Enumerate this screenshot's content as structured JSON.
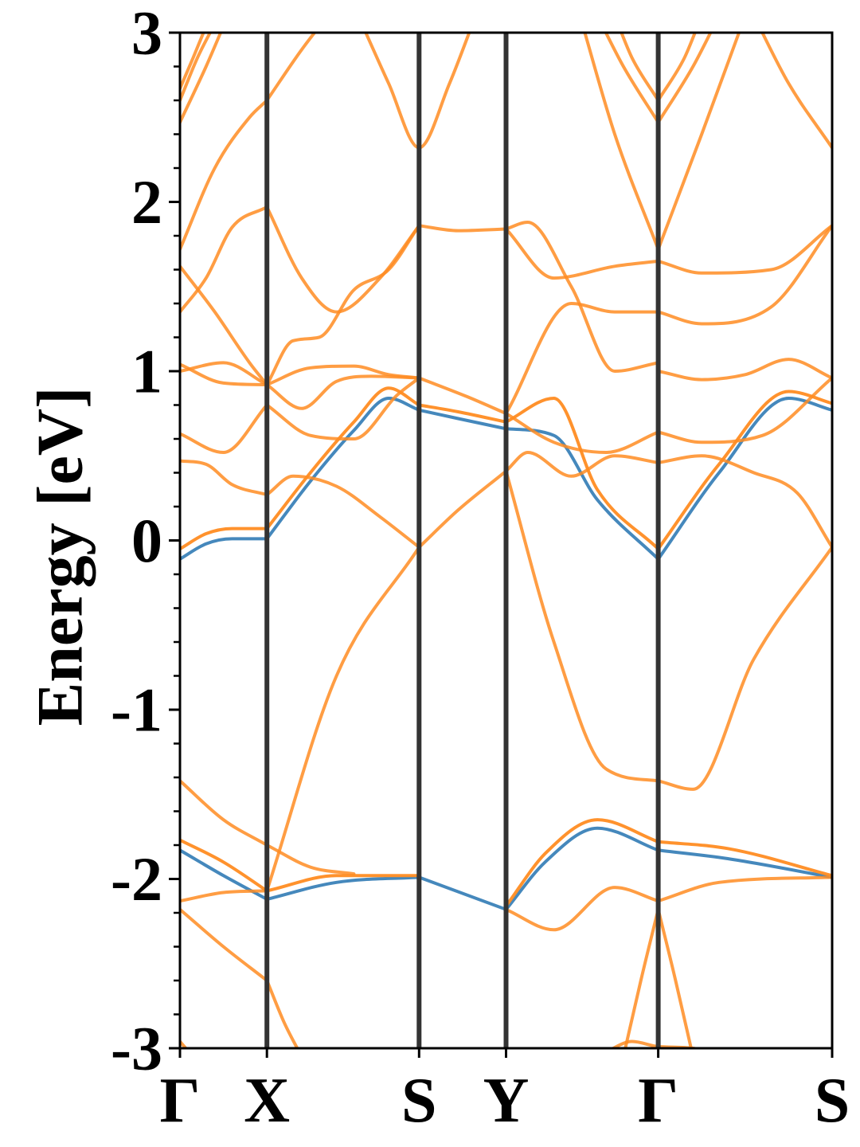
{
  "chart_data": {
    "type": "line",
    "ylabel": "Energy [eV]",
    "xlabel": "",
    "ylim": [
      -3,
      3
    ],
    "yticks": [
      {
        "value": 3,
        "label": "3"
      },
      {
        "value": 2,
        "label": "2"
      },
      {
        "value": 1,
        "label": "1"
      },
      {
        "value": 0,
        "label": "0"
      },
      {
        "value": -1,
        "label": "-1"
      },
      {
        "value": -2,
        "label": "-2"
      },
      {
        "value": -3,
        "label": "-3"
      }
    ],
    "yminor_step": 0.2,
    "kpoints": [
      {
        "label": "Γ",
        "k": 0.0
      },
      {
        "label": "X",
        "k": 1.0
      },
      {
        "label": "S",
        "k": 2.75
      },
      {
        "label": "Y",
        "k": 3.75
      },
      {
        "label": "Γ",
        "k": 5.5
      },
      {
        "label": "S",
        "k": 7.5
      }
    ],
    "grid": false,
    "legend": "none",
    "colors": {
      "blue": "#3b82b8",
      "orange": "#ff8c22",
      "kline": "#333333"
    },
    "series": [
      {
        "color": "blue",
        "bands": [
          {
            "k": [
              0,
              0.3,
              0.6,
              1.0
            ],
            "e": [
              -0.11,
              -0.02,
              0.01,
              0.01
            ]
          },
          {
            "k": [
              1.0,
              1.5,
              2.0,
              2.4,
              2.75
            ],
            "e": [
              0.01,
              0.35,
              0.65,
              0.84,
              0.77
            ]
          },
          {
            "k": [
              2.75,
              3.2,
              3.75
            ],
            "e": [
              0.77,
              0.72,
              0.66
            ]
          },
          {
            "k": [
              3.75,
              4.3,
              4.8,
              5.5
            ],
            "e": [
              0.66,
              0.62,
              0.24,
              -0.11
            ]
          },
          {
            "k": [
              5.5,
              6.2,
              7.0,
              7.5
            ],
            "e": [
              -0.11,
              0.4,
              0.84,
              0.77
            ]
          },
          {
            "k": [
              0,
              0.5,
              1.0
            ],
            "e": [
              -1.83,
              -1.98,
              -2.12
            ]
          },
          {
            "k": [
              1.0,
              1.8,
              2.75
            ],
            "e": [
              -2.12,
              -2.02,
              -1.99
            ]
          },
          {
            "k": [
              3.75,
              4.2,
              4.8,
              5.5
            ],
            "e": [
              -2.18,
              -1.9,
              -1.7,
              -1.83
            ]
          },
          {
            "k": [
              5.5,
              6.3,
              7.5
            ],
            "e": [
              -1.83,
              -1.88,
              -1.99
            ]
          },
          {
            "k": [
              2.75,
              3.75
            ],
            "e": [
              -1.99,
              -2.18
            ]
          }
        ]
      },
      {
        "color": "orange",
        "bands": [
          {
            "k": [
              0,
              0.3,
              0.6,
              1.0
            ],
            "e": [
              -0.05,
              0.04,
              0.07,
              0.07
            ]
          },
          {
            "k": [
              1.0,
              1.5,
              2.0,
              2.4,
              2.75
            ],
            "e": [
              0.07,
              0.4,
              0.7,
              0.9,
              0.8
            ]
          },
          {
            "k": [
              2.75,
              3.2,
              3.75
            ],
            "e": [
              0.8,
              0.76,
              0.7
            ]
          },
          {
            "k": [
              3.75,
              4.3,
              4.8,
              5.5
            ],
            "e": [
              0.7,
              0.84,
              0.3,
              -0.05
            ]
          },
          {
            "k": [
              5.5,
              6.2,
              7.0,
              7.5
            ],
            "e": [
              -0.05,
              0.45,
              0.88,
              0.81
            ]
          },
          {
            "k": [
              0,
              0.5,
              1.0
            ],
            "e": [
              -1.77,
              -1.9,
              -2.07
            ]
          },
          {
            "k": [
              1.0,
              1.8,
              2.75
            ],
            "e": [
              -2.07,
              -1.98,
              -1.98
            ]
          },
          {
            "k": [
              3.75,
              4.2,
              4.8,
              5.5
            ],
            "e": [
              -2.16,
              -1.85,
              -1.65,
              -1.78
            ]
          },
          {
            "k": [
              5.5,
              6.3,
              7.5
            ],
            "e": [
              -1.78,
              -1.82,
              -1.98
            ]
          }
        ]
      },
      {
        "color": "orange",
        "bands": [
          {
            "k": [
              0,
              0.3,
              0.6,
              1.0
            ],
            "e": [
              0.47,
              0.45,
              0.33,
              0.27
            ]
          },
          {
            "k": [
              1.0,
              1.3,
              1.8,
              2.3,
              2.75
            ],
            "e": [
              0.27,
              0.38,
              0.32,
              0.14,
              -0.04
            ]
          },
          {
            "k": [
              2.75,
              3.2,
              3.75
            ],
            "e": [
              -0.04,
              0.18,
              0.41
            ]
          },
          {
            "k": [
              3.75,
              4.3,
              4.9,
              5.5
            ],
            "e": [
              0.41,
              -0.6,
              -1.35,
              -1.42
            ]
          },
          {
            "k": [
              5.5,
              5.9,
              6.6,
              7.5
            ],
            "e": [
              -1.42,
              -1.47,
              -0.7,
              -0.04
            ]
          },
          {
            "k": [
              3.75,
              4.0,
              4.5,
              5.0,
              5.5
            ],
            "e": [
              0.41,
              0.52,
              0.38,
              0.5,
              0.46
            ]
          },
          {
            "k": [
              5.5,
              6.0,
              6.6,
              7.1,
              7.5
            ],
            "e": [
              0.46,
              0.5,
              0.4,
              0.28,
              -0.04
            ]
          },
          {
            "k": [
              0,
              0.5,
              1.0
            ],
            "e": [
              0.63,
              0.52,
              0.8
            ]
          },
          {
            "k": [
              1.0,
              1.5,
              2.0,
              2.5,
              2.75
            ],
            "e": [
              0.8,
              0.62,
              0.6,
              0.86,
              0.96
            ]
          },
          {
            "k": [
              2.75,
              3.3,
              3.75
            ],
            "e": [
              0.96,
              0.85,
              0.75
            ]
          },
          {
            "k": [
              3.75,
              4.3,
              4.9,
              5.5
            ],
            "e": [
              0.75,
              0.58,
              0.52,
              0.64
            ]
          },
          {
            "k": [
              5.5,
              6.0,
              6.7,
              7.5
            ],
            "e": [
              0.64,
              0.58,
              0.62,
              0.96
            ]
          },
          {
            "k": [
              0,
              0.5,
              1.0
            ],
            "e": [
              1.04,
              0.93,
              0.92
            ]
          },
          {
            "k": [
              1.0,
              1.4,
              1.8,
              2.2,
              2.75
            ],
            "e": [
              0.92,
              0.78,
              0.94,
              0.97,
              0.96
            ]
          },
          {
            "k": [
              5.5,
              6.0,
              6.5,
              7.0,
              7.5
            ],
            "e": [
              1.0,
              0.95,
              0.98,
              1.07,
              0.96
            ]
          },
          {
            "k": [
              0,
              0.5,
              1.0
            ],
            "e": [
              1.0,
              1.05,
              0.92
            ]
          },
          {
            "k": [
              1.0,
              1.5,
              2.0,
              2.4,
              2.75
            ],
            "e": [
              0.92,
              1.02,
              1.03,
              0.98,
              0.96
            ]
          },
          {
            "k": [
              0,
              0.3,
              0.6,
              1.0
            ],
            "e": [
              1.35,
              1.55,
              1.85,
              1.97
            ]
          },
          {
            "k": [
              1.0,
              1.4,
              1.8,
              2.3,
              2.75
            ],
            "e": [
              1.97,
              1.55,
              1.35,
              1.55,
              1.86
            ]
          },
          {
            "k": [
              0,
              0.4,
              0.8,
              1.0
            ],
            "e": [
              1.62,
              1.35,
              1.05,
              0.92
            ]
          },
          {
            "k": [
              1.0,
              1.3,
              1.6,
              2.0,
              2.4,
              2.75
            ],
            "e": [
              0.92,
              1.18,
              1.2,
              1.48,
              1.6,
              1.86
            ]
          },
          {
            "k": [
              2.75,
              3.2,
              3.75
            ],
            "e": [
              1.86,
              1.83,
              1.84
            ]
          },
          {
            "k": [
              3.75,
              4.3,
              5.0,
              5.5
            ],
            "e": [
              1.84,
              1.55,
              1.62,
              1.65
            ]
          },
          {
            "k": [
              5.5,
              6.0,
              6.8,
              7.5
            ],
            "e": [
              1.65,
              1.58,
              1.6,
              1.86
            ]
          },
          {
            "k": [
              3.75,
              4.5,
              5.0,
              5.5
            ],
            "e": [
              0.75,
              1.4,
              1.35,
              1.35
            ]
          },
          {
            "k": [
              5.5,
              6.0,
              6.8,
              7.5
            ],
            "e": [
              1.35,
              1.28,
              1.38,
              1.86
            ]
          },
          {
            "k": [
              3.75,
              4.0,
              4.5,
              5.0,
              5.5
            ],
            "e": [
              1.84,
              1.88,
              1.5,
              1.0,
              1.05
            ]
          },
          {
            "k": [
              0,
              0.4,
              0.8,
              1.0
            ],
            "e": [
              1.72,
              2.2,
              2.5,
              2.6
            ]
          },
          {
            "k": [
              1.0,
              1.4,
              1.7
            ],
            "e": [
              2.6,
              2.9,
              3.1
            ]
          },
          {
            "k": [
              2.05,
              2.4,
              2.75,
              3.1,
              3.4
            ],
            "e": [
              3.1,
              2.7,
              2.32,
              2.7,
              3.1
            ]
          },
          {
            "k": [
              5.5,
              5.0,
              4.6
            ],
            "e": [
              1.72,
              2.4,
              3.1
            ]
          },
          {
            "k": [
              5.5,
              6.0,
              6.5
            ],
            "e": [
              1.72,
              2.4,
              3.1
            ]
          },
          {
            "k": [
              0,
              0.3,
              0.55
            ],
            "e": [
              2.47,
              2.8,
              3.1
            ]
          },
          {
            "k": [
              0,
              0.2,
              0.45
            ],
            "e": [
              2.6,
              2.85,
              3.1
            ]
          },
          {
            "k": [
              0,
              0.15,
              0.35
            ],
            "e": [
              2.67,
              2.85,
              3.1
            ]
          },
          {
            "k": [
              5.5,
              5.1,
              4.8
            ],
            "e": [
              2.47,
              2.8,
              3.1
            ]
          },
          {
            "k": [
              5.5,
              5.9,
              6.2
            ],
            "e": [
              2.47,
              2.8,
              3.1
            ]
          },
          {
            "k": [
              5.5,
              5.2,
              5.0
            ],
            "e": [
              2.6,
              2.85,
              3.1
            ]
          },
          {
            "k": [
              5.5,
              5.8,
              6.0
            ],
            "e": [
              2.6,
              2.85,
              3.1
            ]
          },
          {
            "k": [
              6.6,
              7.0,
              7.5
            ],
            "e": [
              3.1,
              2.7,
              2.32
            ]
          },
          {
            "k": [
              0,
              0.5,
              1.0
            ],
            "e": [
              -1.42,
              -1.65,
              -1.8
            ]
          },
          {
            "k": [
              1.0,
              1.5,
              2.0
            ],
            "e": [
              -1.8,
              -1.93,
              -1.97
            ]
          },
          {
            "k": [
              1.0,
              1.8,
              2.75
            ],
            "e": [
              -2.07,
              -0.8,
              -0.04
            ]
          },
          {
            "k": [
              0,
              0.5,
              1.0
            ],
            "e": [
              -2.13,
              -2.08,
              -2.07
            ]
          },
          {
            "k": [
              3.75,
              4.3,
              5.0,
              5.5
            ],
            "e": [
              -2.18,
              -2.3,
              -2.05,
              -2.13
            ]
          },
          {
            "k": [
              5.5,
              6.2,
              7.5
            ],
            "e": [
              -2.13,
              -2.02,
              -1.99
            ]
          },
          {
            "k": [
              0,
              0.5,
              1.0
            ],
            "e": [
              -2.18,
              -2.4,
              -2.6
            ]
          },
          {
            "k": [
              1.0,
              1.2,
              1.4
            ],
            "e": [
              -2.6,
              -2.85,
              -3.05
            ]
          },
          {
            "k": [
              5.5,
              5.3,
              5.1
            ],
            "e": [
              -2.18,
              -2.6,
              -3.05
            ]
          },
          {
            "k": [
              5.5,
              5.7,
              5.9
            ],
            "e": [
              -2.18,
              -2.6,
              -3.05
            ]
          },
          {
            "k": [
              4.9,
              5.2,
              5.5,
              5.9,
              6.2
            ],
            "e": [
              -3.02,
              -2.96,
              -2.99,
              -3.0,
              -3.05
            ]
          },
          {
            "k": [
              0,
              0.15
            ],
            "e": [
              -2.96,
              -3.05
            ]
          }
        ]
      }
    ]
  }
}
